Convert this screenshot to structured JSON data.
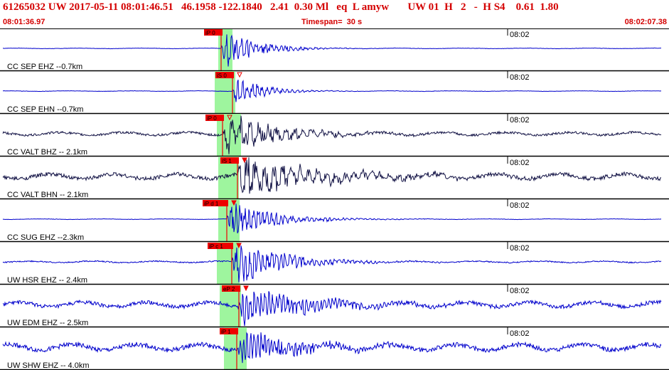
{
  "header": {
    "event_id": "61265032",
    "network": "UW",
    "datetime": "2017-05-11 08:01:46.51",
    "lat": "46.1958",
    "lon": "-122.1840",
    "depth": "2.41",
    "magnitude": "0.30 Ml",
    "event_type": "eq",
    "flag": "L",
    "author": "amyw",
    "source": "UW",
    "version": "01",
    "quality": "H",
    "count": "2",
    "dash": "-",
    "subnet": "H S4",
    "rms": "0.61",
    "gap": "1.80",
    "start_time": "08:01:36.97",
    "timespan": "Timespan=  30 s",
    "end_time": "08:02:07.38"
  },
  "colors": {
    "header_text": "#d40000",
    "trace_blue": "#0000cc",
    "trace_dark": "#111144",
    "pick": "#ee0000",
    "window": "#9ef59e"
  },
  "panels": [
    {
      "label": "CC SEP EHZ --0.7km",
      "time_mark": "08:02",
      "pick": "iP 0",
      "color": "#0000cc",
      "pre": 0.01,
      "amp": 0.45,
      "dur": 45,
      "freq": 0.9,
      "triangle": "none"
    },
    {
      "label": "CC SEP EHN --0.7km",
      "time_mark": "08:02",
      "pick": "iS 0",
      "color": "#0000cc",
      "pre": 0.01,
      "amp": 0.35,
      "dur": 40,
      "freq": 0.9,
      "triangle": "open"
    },
    {
      "label": "CC VALT BHZ -- 2.1km",
      "time_mark": "08:02",
      "pick": "iP 0",
      "color": "#111144",
      "pre": 0.06,
      "amp": 0.5,
      "dur": 70,
      "freq": 0.5,
      "triangle": "open"
    },
    {
      "label": "CC VALT BHN -- 2.1km",
      "time_mark": "08:02",
      "pick": "iS 1",
      "color": "#111144",
      "pre": 0.1,
      "amp": 0.45,
      "dur": 110,
      "freq": 0.5,
      "triangle": "filled"
    },
    {
      "label": "CC SUG EHZ --2.3km",
      "time_mark": "08:02",
      "pick": "iP d 1",
      "color": "#0000cc",
      "pre": 0.01,
      "amp": 0.45,
      "dur": 60,
      "freq": 1.0,
      "triangle": "filled"
    },
    {
      "label": "UW HSR EHZ -- 2.4km",
      "time_mark": "08:02",
      "pick": "iP c 1",
      "color": "#0000cc",
      "pre": 0.03,
      "amp": 0.55,
      "dur": 65,
      "freq": 1.0,
      "triangle": "filled"
    },
    {
      "label": "UW EDM EHZ -- 2.5km",
      "time_mark": "08:02",
      "pick": "eP 2",
      "color": "#0000cc",
      "pre": 0.1,
      "amp": 0.45,
      "dur": 90,
      "freq": 1.2,
      "triangle": "filled"
    },
    {
      "label": "UW SHW EHZ -- 4.0km",
      "time_mark": "08:02",
      "pick": "iP 1",
      "color": "#0000cc",
      "pre": 0.12,
      "amp": 0.4,
      "dur": 80,
      "freq": 1.3,
      "triangle": "none"
    }
  ]
}
